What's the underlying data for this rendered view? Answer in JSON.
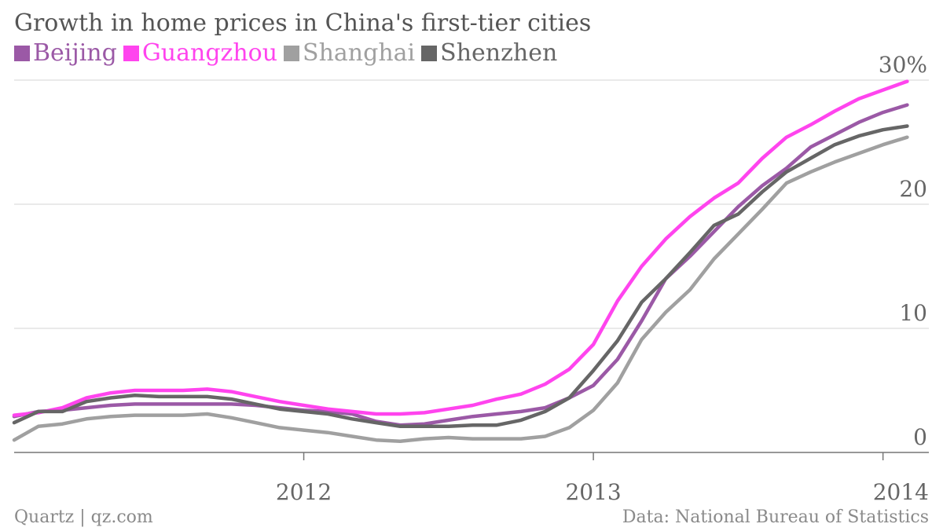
{
  "title": "Growth in home prices in China's first-tier cities",
  "footer": {
    "source_left": "Quartz | qz.com",
    "source_right": "Data: National Bureau of Statistics"
  },
  "chart_data": {
    "type": "line",
    "title": "Growth in home prices in China's first-tier cities",
    "xlabel": "",
    "ylabel": "",
    "ylim": [
      0,
      30
    ],
    "yticks": [
      0,
      10,
      20,
      30
    ],
    "ytick_labels": [
      "0",
      "10",
      "20",
      "30%"
    ],
    "xticks": [
      2012,
      2013,
      2014
    ],
    "xtick_labels": [
      "2012",
      "2013",
      "2014"
    ],
    "grid": true,
    "legend": "top-left",
    "series": [
      {
        "name": "Beijing",
        "color": "#9b59a6",
        "x": [
          "2011-01",
          "2011-02",
          "2011-03",
          "2011-04",
          "2011-05",
          "2011-06",
          "2011-07",
          "2011-08",
          "2011-09",
          "2011-10",
          "2011-11",
          "2011-12",
          "2012-01",
          "2012-02",
          "2012-03",
          "2012-04",
          "2012-05",
          "2012-06",
          "2012-07",
          "2012-08",
          "2012-09",
          "2012-10",
          "2012-11",
          "2012-12",
          "2013-01",
          "2013-02",
          "2013-03",
          "2013-04",
          "2013-05",
          "2013-06",
          "2013-07",
          "2013-08",
          "2013-09",
          "2013-10",
          "2013-11",
          "2013-12",
          "2014-01",
          "2014-02"
        ],
        "values": [
          2.9,
          3.3,
          3.4,
          3.6,
          3.8,
          3.9,
          3.9,
          3.9,
          3.9,
          3.9,
          3.8,
          3.6,
          3.4,
          3.3,
          3.1,
          2.5,
          2.2,
          2.3,
          2.6,
          2.9,
          3.1,
          3.3,
          3.6,
          4.4,
          5.4,
          7.5,
          10.6,
          14.0,
          15.8,
          17.8,
          19.8,
          21.5,
          22.9,
          24.6,
          25.6,
          26.6,
          27.4,
          28.0
        ]
      },
      {
        "name": "Guangzhou",
        "color": "#ff44ee",
        "x": [
          "2011-01",
          "2011-02",
          "2011-03",
          "2011-04",
          "2011-05",
          "2011-06",
          "2011-07",
          "2011-08",
          "2011-09",
          "2011-10",
          "2011-11",
          "2011-12",
          "2012-01",
          "2012-02",
          "2012-03",
          "2012-04",
          "2012-05",
          "2012-06",
          "2012-07",
          "2012-08",
          "2012-09",
          "2012-10",
          "2012-11",
          "2012-12",
          "2013-01",
          "2013-02",
          "2013-03",
          "2013-04",
          "2013-05",
          "2013-06",
          "2013-07",
          "2013-08",
          "2013-09",
          "2013-10",
          "2013-11",
          "2013-12",
          "2014-01",
          "2014-02"
        ],
        "values": [
          3.0,
          3.2,
          3.6,
          4.4,
          4.8,
          5.0,
          5.0,
          5.0,
          5.1,
          4.9,
          4.5,
          4.1,
          3.8,
          3.5,
          3.3,
          3.1,
          3.1,
          3.2,
          3.5,
          3.8,
          4.3,
          4.7,
          5.5,
          6.7,
          8.7,
          12.2,
          15.0,
          17.2,
          19.0,
          20.5,
          21.7,
          23.7,
          25.4,
          26.4,
          27.5,
          28.5,
          29.2,
          29.9
        ]
      },
      {
        "name": "Shanghai",
        "color": "#a0a0a0",
        "x": [
          "2011-01",
          "2011-02",
          "2011-03",
          "2011-04",
          "2011-05",
          "2011-06",
          "2011-07",
          "2011-08",
          "2011-09",
          "2011-10",
          "2011-11",
          "2011-12",
          "2012-01",
          "2012-02",
          "2012-03",
          "2012-04",
          "2012-05",
          "2012-06",
          "2012-07",
          "2012-08",
          "2012-09",
          "2012-10",
          "2012-11",
          "2012-12",
          "2013-01",
          "2013-02",
          "2013-03",
          "2013-04",
          "2013-05",
          "2013-06",
          "2013-07",
          "2013-08",
          "2013-09",
          "2013-10",
          "2013-11",
          "2013-12",
          "2014-01",
          "2014-02"
        ],
        "values": [
          1.0,
          2.1,
          2.3,
          2.7,
          2.9,
          3.0,
          3.0,
          3.0,
          3.1,
          2.8,
          2.4,
          2.0,
          1.8,
          1.6,
          1.3,
          1.0,
          0.9,
          1.1,
          1.2,
          1.1,
          1.1,
          1.1,
          1.3,
          2.0,
          3.4,
          5.6,
          9.1,
          11.3,
          13.1,
          15.6,
          17.6,
          19.6,
          21.7,
          22.6,
          23.4,
          24.1,
          24.8,
          25.4
        ]
      },
      {
        "name": "Shenzhen",
        "color": "#666666",
        "x": [
          "2011-01",
          "2011-02",
          "2011-03",
          "2011-04",
          "2011-05",
          "2011-06",
          "2011-07",
          "2011-08",
          "2011-09",
          "2011-10",
          "2011-11",
          "2011-12",
          "2012-01",
          "2012-02",
          "2012-03",
          "2012-04",
          "2012-05",
          "2012-06",
          "2012-07",
          "2012-08",
          "2012-09",
          "2012-10",
          "2012-11",
          "2012-12",
          "2013-01",
          "2013-02",
          "2013-03",
          "2013-04",
          "2013-05",
          "2013-06",
          "2013-07",
          "2013-08",
          "2013-09",
          "2013-10",
          "2013-11",
          "2013-12",
          "2014-01",
          "2014-02"
        ],
        "values": [
          2.4,
          3.3,
          3.3,
          4.1,
          4.4,
          4.6,
          4.5,
          4.5,
          4.5,
          4.3,
          3.9,
          3.5,
          3.3,
          3.1,
          2.7,
          2.4,
          2.1,
          2.1,
          2.1,
          2.2,
          2.2,
          2.6,
          3.3,
          4.4,
          6.6,
          9.0,
          12.1,
          14.0,
          16.1,
          18.3,
          19.2,
          21.0,
          22.6,
          23.7,
          24.8,
          25.5,
          26.0,
          26.3
        ]
      }
    ]
  }
}
